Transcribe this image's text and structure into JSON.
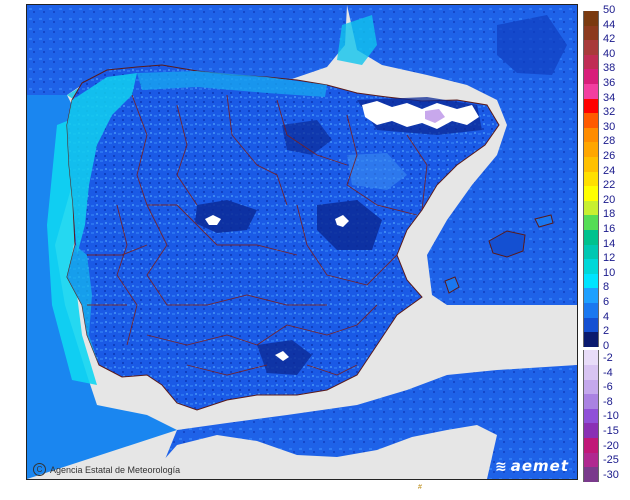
{
  "map": {
    "credit_text": "Agencia Estatal de Meteorología",
    "credit_symbol": "C",
    "logo_text": "aemet",
    "bottom_mark": "#"
  },
  "legend": {
    "positive": [
      {
        "label": "50",
        "color": "#7a3a10"
      },
      {
        "label": "44",
        "color": "#8c3a1e"
      },
      {
        "label": "42",
        "color": "#a83a3a"
      },
      {
        "label": "40",
        "color": "#c02c55"
      },
      {
        "label": "38",
        "color": "#d81e7a"
      },
      {
        "label": "36",
        "color": "#f23ea0"
      },
      {
        "label": "34",
        "color": "#ff0000"
      },
      {
        "label": "32",
        "color": "#ff5a00"
      },
      {
        "label": "30",
        "color": "#ff8c00"
      },
      {
        "label": "28",
        "color": "#ffa600"
      },
      {
        "label": "26",
        "color": "#ffc000"
      },
      {
        "label": "24",
        "color": "#ffe000"
      },
      {
        "label": "22",
        "color": "#ffff00"
      },
      {
        "label": "20",
        "color": "#c8f030"
      },
      {
        "label": "18",
        "color": "#55dd55"
      },
      {
        "label": "16",
        "color": "#00c28e"
      },
      {
        "label": "14",
        "color": "#00c8b2"
      },
      {
        "label": "12",
        "color": "#00d8d8"
      },
      {
        "label": "10",
        "color": "#00e4ff"
      },
      {
        "label": "8",
        "color": "#1ea0ff"
      },
      {
        "label": "6",
        "color": "#1a78f0"
      },
      {
        "label": "4",
        "color": "#1450d2"
      },
      {
        "label": "2",
        "color": "#0f32a0"
      },
      {
        "label": "0",
        "color": "#0a1a6e"
      }
    ],
    "negative": [
      {
        "label": "-2",
        "color": "#e8dcf8"
      },
      {
        "label": "-4",
        "color": "#d8c4f2"
      },
      {
        "label": "-6",
        "color": "#c4a8ec"
      },
      {
        "label": "-8",
        "color": "#aa82e2"
      },
      {
        "label": "-10",
        "color": "#9050d8"
      },
      {
        "label": "-15",
        "color": "#8a30b4"
      },
      {
        "label": "-20",
        "color": "#c01878"
      },
      {
        "label": "-25",
        "color": "#b02890"
      },
      {
        "label": "-30",
        "color": "#7a3a8c"
      }
    ]
  }
}
